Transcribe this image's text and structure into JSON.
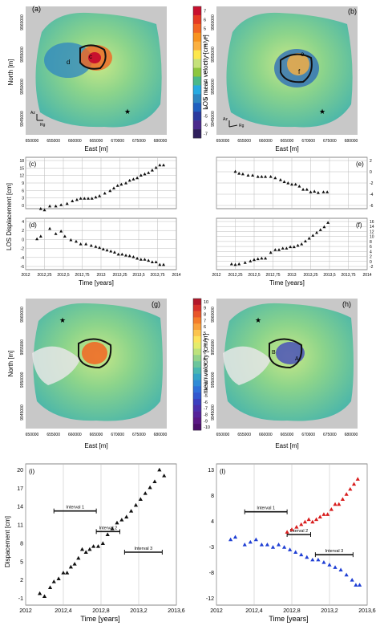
{
  "top_maps": {
    "panels": [
      "(a)",
      "(b)"
    ],
    "markers_a": [
      "c",
      "d"
    ],
    "markers_b": [
      "e",
      "f"
    ],
    "ylabel": "North [m]",
    "xlabel": "East [m]",
    "xticks": [
      "650000",
      "655000",
      "660000",
      "665000",
      "670000",
      "675000",
      "680000"
    ],
    "yticks": [
      "9960000",
      "9955000",
      "9950000",
      "9945000"
    ],
    "arrow_labels_a": [
      "Az",
      "Rg"
    ],
    "arrow_labels_b": [
      "Az",
      "Rg"
    ]
  },
  "colorbar_top": {
    "title": "LOS mean velocity [cm/yr]",
    "ticks": [
      "7",
      "6",
      "5",
      "4",
      "3",
      "2",
      "1",
      "0",
      "-1",
      "-2",
      "-3",
      "-4",
      "-5",
      "-6",
      "-7"
    ],
    "colors": [
      "#c8102e",
      "#e53a23",
      "#f26522",
      "#f7931e",
      "#fbb040",
      "#fde74c",
      "#c5e17a",
      "#8dc63f",
      "#4bb88a",
      "#27aae1",
      "#2e86c1",
      "#1f5fbf",
      "#2b3a9e",
      "#4b2a8c",
      "#2f1f5c"
    ]
  },
  "timeseries": {
    "ylabel": "LOS Displacement [cm]",
    "xlabel": "Time [years]",
    "xticks": [
      "2012",
      "2012,25",
      "2012,5",
      "2012,75",
      "2013",
      "2013,25",
      "2013,5",
      "2013,75",
      "2014"
    ],
    "panels": [
      {
        "label": "(c)",
        "yticks": [
          "18",
          "15",
          "12",
          "9",
          "6",
          "3",
          "0"
        ]
      },
      {
        "label": "(e)",
        "yticks": [
          "2",
          "0",
          "-2",
          "-4",
          "-6"
        ]
      },
      {
        "label": "(d)",
        "yticks": [
          "4",
          "2",
          "0",
          "-2",
          "-4",
          "-6"
        ]
      },
      {
        "label": "(f)",
        "yticks": [
          "16",
          "14",
          "12",
          "10",
          "8",
          "6",
          "4",
          "2",
          "0",
          "-2"
        ]
      }
    ]
  },
  "bottom_maps": {
    "panels": [
      "(g)",
      "(h)"
    ],
    "ylabel": "North [m]",
    "xlabel": "East [m]",
    "xticks": [
      "650000",
      "655000",
      "660000",
      "665000",
      "670000",
      "675000",
      "680000"
    ],
    "yticks": [
      "9960000",
      "9955000",
      "9950000",
      "9945000"
    ],
    "markers_h": [
      "B",
      "A"
    ]
  },
  "colorbar_bottom": {
    "title": "mean velocity [cm/yr]",
    "ticks": [
      "10",
      "9",
      "8",
      "7",
      "6",
      "5",
      "4",
      "3",
      "2",
      "1",
      "0",
      "-1",
      "-2",
      "-3",
      "-4",
      "-5",
      "-6",
      "-7",
      "-8",
      "-9",
      "-10"
    ],
    "colors": [
      "#b2182b",
      "#d6312b",
      "#e8562a",
      "#f47d2a",
      "#f9a13b",
      "#fcc44e",
      "#fde35d",
      "#e4ec6c",
      "#bde27c",
      "#93d38a",
      "#6cc59b",
      "#4ab7b0",
      "#35a3c6",
      "#2f8ad6",
      "#2f6fd9",
      "#3257cf",
      "#3b3fbf",
      "#4a2fac",
      "#55229a",
      "#5a1884",
      "#4b0f6a"
    ]
  },
  "chart_data": [
    {
      "type": "scatter",
      "panel": "(c)",
      "xlabel": "Time [years]",
      "ylabel": "LOS Displacement [cm]",
      "xlim": [
        2012,
        2014
      ],
      "ylim": [
        -1,
        19
      ],
      "x": [
        2012.2,
        2012.25,
        2012.32,
        2012.4,
        2012.47,
        2012.55,
        2012.62,
        2012.68,
        2012.73,
        2012.78,
        2012.83,
        2012.88,
        2012.93,
        2012.98,
        2013.05,
        2013.12,
        2013.17,
        2013.22,
        2013.27,
        2013.33,
        2013.38,
        2013.43,
        2013.48,
        2013.53,
        2013.58,
        2013.63,
        2013.68,
        2013.73,
        2013.78,
        2013.83
      ],
      "y": [
        -1,
        -1.5,
        0,
        0,
        0.5,
        1,
        2,
        2.5,
        3,
        3,
        3,
        3,
        3.5,
        4,
        5,
        6,
        7,
        8,
        8.5,
        9,
        10,
        10.5,
        11,
        12,
        12.5,
        13,
        14,
        15,
        16,
        16
      ]
    },
    {
      "type": "scatter",
      "panel": "(e)",
      "xlabel": "Time [years]",
      "ylabel": "LOS Displacement [cm]",
      "xlim": [
        2012,
        2014
      ],
      "ylim": [
        -6,
        2
      ],
      "x": [
        2012.25,
        2012.3,
        2012.35,
        2012.42,
        2012.48,
        2012.55,
        2012.6,
        2012.65,
        2012.72,
        2012.78,
        2012.85,
        2012.9,
        2012.95,
        2013.0,
        2013.05,
        2013.1,
        2013.15,
        2013.2,
        2013.25,
        2013.3,
        2013.35,
        2013.42,
        2013.47
      ],
      "y": [
        -0.2,
        -0.5,
        -0.6,
        -0.8,
        -0.8,
        -1,
        -1,
        -1,
        -1,
        -1.2,
        -1.5,
        -1.8,
        -2,
        -2.2,
        -2.2,
        -2.5,
        -3,
        -3,
        -3.4,
        -3.3,
        -3.5,
        -3.4,
        -3.4
      ]
    },
    {
      "type": "scatter",
      "panel": "(d)",
      "xlabel": "Time [years]",
      "ylabel": "LOS Displacement [cm]",
      "xlim": [
        2012,
        2014
      ],
      "ylim": [
        -6,
        4
      ],
      "x": [
        2012.15,
        2012.2,
        2012.32,
        2012.4,
        2012.47,
        2012.52,
        2012.6,
        2012.67,
        2012.73,
        2012.8,
        2012.87,
        2012.93,
        2012.98,
        2013.03,
        2013.08,
        2013.13,
        2013.18,
        2013.23,
        2013.28,
        2013.33,
        2013.38,
        2013.43,
        2013.48,
        2013.53,
        2013.58,
        2013.63,
        2013.68,
        2013.73,
        2013.78,
        2013.83
      ],
      "y": [
        0,
        0.5,
        2,
        1,
        1.5,
        0.5,
        -0.2,
        -0.5,
        -1,
        -1,
        -1.3,
        -1.5,
        -1.7,
        -2,
        -2.2,
        -2.4,
        -2.6,
        -3,
        -3,
        -3.2,
        -3.3,
        -3.5,
        -3.8,
        -4,
        -4,
        -4.2,
        -4.5,
        -4.5,
        -5,
        -5
      ]
    },
    {
      "type": "scatter",
      "panel": "(f)",
      "xlabel": "Time [years]",
      "ylabel": "LOS Displacement [cm]",
      "xlim": [
        2012,
        2014
      ],
      "ylim": [
        -2,
        16
      ],
      "x": [
        2012.2,
        2012.25,
        2012.3,
        2012.38,
        2012.45,
        2012.5,
        2012.55,
        2012.6,
        2012.65,
        2012.72,
        2012.78,
        2012.83,
        2012.88,
        2012.93,
        2012.98,
        2013.03,
        2013.08,
        2013.13,
        2013.18,
        2013.23,
        2013.28,
        2013.33,
        2013.38,
        2013.43,
        2013.48
      ],
      "y": [
        0,
        -0.2,
        0,
        0.5,
        1,
        1.5,
        1.8,
        2,
        2,
        4,
        5,
        5,
        5.5,
        5.5,
        6,
        6,
        6.5,
        7,
        8,
        9,
        10,
        11,
        12,
        13,
        14.5
      ]
    },
    {
      "type": "scatter",
      "panel": "(i)",
      "xlabel": "Time [years]",
      "ylabel": "Dispacement [cm]",
      "xlim": [
        2012,
        2013.6
      ],
      "ylim": [
        -2,
        22
      ],
      "x": [
        2012.15,
        2012.2,
        2012.26,
        2012.3,
        2012.35,
        2012.4,
        2012.44,
        2012.48,
        2012.52,
        2012.56,
        2012.6,
        2012.64,
        2012.68,
        2012.72,
        2012.77,
        2012.82,
        2012.87,
        2012.92,
        2012.97,
        2013.02,
        2013.07,
        2013.12,
        2013.17,
        2013.22,
        2013.27,
        2013.32,
        2013.37,
        2013.42,
        2013.47
      ],
      "y": [
        0,
        -0.5,
        1,
        2,
        2.5,
        3.5,
        3.5,
        4.5,
        5,
        6,
        7.5,
        7,
        7.5,
        8,
        8,
        8.5,
        10,
        11,
        12,
        12.5,
        13,
        14,
        15,
        16,
        17,
        18,
        19,
        21,
        20
      ]
    },
    {
      "type": "scatter",
      "panel": "(l)",
      "xlabel": "Time [years]",
      "xlim": [
        2012,
        2013.6
      ],
      "ylim": [
        -14,
        14
      ],
      "series": [
        {
          "color": "#d81e1e",
          "x": [
            2012.75,
            2012.8,
            2012.85,
            2012.9,
            2012.94,
            2012.98,
            2013.02,
            2013.06,
            2013.1,
            2013.14,
            2013.18,
            2013.22,
            2013.26,
            2013.3,
            2013.34,
            2013.38,
            2013.42,
            2013.46,
            2013.5
          ],
          "y": [
            0.5,
            1,
            1.5,
            2,
            2.5,
            3,
            2.5,
            3,
            3.5,
            4,
            4,
            5,
            6,
            6,
            7,
            8,
            9,
            10,
            11
          ]
        },
        {
          "color": "#1f3fd4",
          "x": [
            2012.15,
            2012.2,
            2012.3,
            2012.36,
            2012.42,
            2012.48,
            2012.54,
            2012.6,
            2012.66,
            2012.72,
            2012.78,
            2012.84,
            2012.9,
            2012.96,
            2013.02,
            2013.08,
            2013.14,
            2013.2,
            2013.26,
            2013.32,
            2013.38,
            2013.44,
            2013.48,
            2013.52
          ],
          "y": [
            -1,
            -0.5,
            -2,
            -1.5,
            -1,
            -2,
            -2,
            -2.5,
            -2,
            -2.5,
            -3,
            -3.5,
            -4,
            -4.5,
            -5,
            -5,
            -5.5,
            -6,
            -6.5,
            -7,
            -8,
            -9,
            -10,
            -10
          ]
        }
      ]
    }
  ],
  "bottom_plots": {
    "panels": [
      "(i)",
      "(l)"
    ],
    "ylabel_i": "Dispacement [cm]",
    "xlabel": "Time [years]",
    "xticks": [
      "2012",
      "2012,4",
      "2012,8",
      "2013,2",
      "2013,6"
    ],
    "yticks_i": [
      "20",
      "17",
      "14",
      "11",
      "8",
      "5",
      "2",
      "-1"
    ],
    "yticks_l": [
      "13",
      "4",
      "-3",
      "-12"
    ],
    "yticks_l_full": [
      "13",
      "8",
      "4",
      "-3",
      "-8",
      "-12"
    ],
    "intervals": [
      {
        "label": "Interval 1",
        "range": [
          2012.3,
          2012.75
        ]
      },
      {
        "label": "Interval 2",
        "range": [
          2012.75,
          2013.0
        ]
      },
      {
        "label": "Interval 3",
        "range": [
          2013.05,
          2013.45
        ]
      }
    ]
  }
}
